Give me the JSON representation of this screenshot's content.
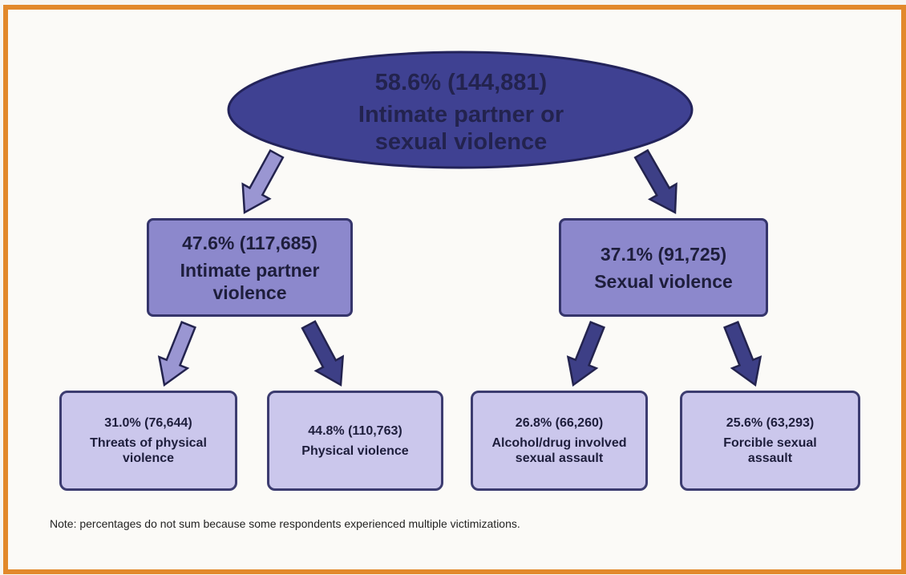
{
  "nodes": [
    {
      "stat": "58.6% (144,881)",
      "label": "Intimate partner or sexual violence"
    },
    {
      "stat": "47.6% (117,685)",
      "label": "Intimate partner violence"
    },
    {
      "stat": "37.1% (91,725)",
      "label": "Sexual violence"
    },
    {
      "stat": "31.0% (76,644)",
      "label": "Threats of physical violence"
    },
    {
      "stat": "44.8% (110,763)",
      "label": "Physical violence"
    },
    {
      "stat": "26.8% (66,260)",
      "label": "Alcohol/drug involved sexual assault"
    },
    {
      "stat": "25.6% (63,293)",
      "label": "Forcible sexual assault"
    }
  ],
  "note": "Note: percentages do not sum because some respondents experienced multiple victimizations."
}
